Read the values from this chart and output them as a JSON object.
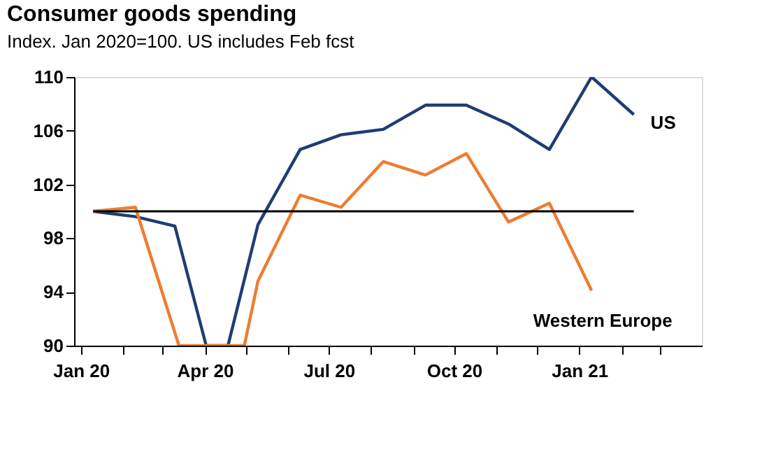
{
  "chart_data": {
    "type": "line",
    "title": "Consumer goods spending",
    "subtitle": "Index. Jan 2020=100. US includes Feb fcst",
    "series": [
      {
        "name": "US",
        "color": "#1f3d75",
        "x": [
          "2020-01-10",
          "2020-02-10",
          "2020-03-10",
          "2020-04-02",
          "2020-04-18",
          "2020-05-10",
          "2020-06-10",
          "2020-07-10",
          "2020-08-10",
          "2020-09-10",
          "2020-10-10",
          "2020-11-10",
          "2020-12-10",
          "2021-01-10",
          "2021-02-10"
        ],
        "values": [
          100,
          99.6,
          98.9,
          90,
          90,
          99,
          104.6,
          105.7,
          106.1,
          107.9,
          107.9,
          106.5,
          104.6,
          110,
          107.2
        ]
      },
      {
        "name": "Western Europe",
        "color": "#ed7d31",
        "x": [
          "2020-01-10",
          "2020-02-10",
          "2020-03-13",
          "2020-04-30",
          "2020-05-10",
          "2020-06-10",
          "2020-07-10",
          "2020-08-10",
          "2020-09-10",
          "2020-10-10",
          "2020-11-10",
          "2020-12-10",
          "2021-01-10"
        ],
        "values": [
          100,
          100.3,
          90,
          90,
          94.8,
          101.2,
          100.3,
          103.7,
          102.7,
          104.3,
          99.2,
          100.6,
          94.1
        ]
      }
    ],
    "ylim": [
      90,
      110
    ],
    "yticks": [
      90,
      94,
      98,
      102,
      106,
      110
    ],
    "xlim": [
      "2019-12-27",
      "2021-04-01"
    ],
    "xticks": [
      {
        "value": "2020-01-01",
        "label": "Jan 20"
      },
      {
        "value": "2020-02-01",
        "label": null
      },
      {
        "value": "2020-03-01",
        "label": null
      },
      {
        "value": "2020-04-01",
        "label": "Apr 20"
      },
      {
        "value": "2020-05-01",
        "label": null
      },
      {
        "value": "2020-06-01",
        "label": null
      },
      {
        "value": "2020-07-01",
        "label": "Jul 20"
      },
      {
        "value": "2020-08-01",
        "label": null
      },
      {
        "value": "2020-09-01",
        "label": null
      },
      {
        "value": "2020-10-01",
        "label": "Oct 20"
      },
      {
        "value": "2020-11-01",
        "label": null
      },
      {
        "value": "2020-12-01",
        "label": null
      },
      {
        "value": "2021-01-01",
        "label": "Jan 21"
      },
      {
        "value": "2021-02-01",
        "label": null
      },
      {
        "value": "2021-03-01",
        "label": null
      }
    ],
    "ref_lines": [
      {
        "axis": "y",
        "value": 100,
        "color": "#000000"
      }
    ],
    "grid": false,
    "legend": false,
    "marker": "none",
    "line_style": "solid"
  }
}
